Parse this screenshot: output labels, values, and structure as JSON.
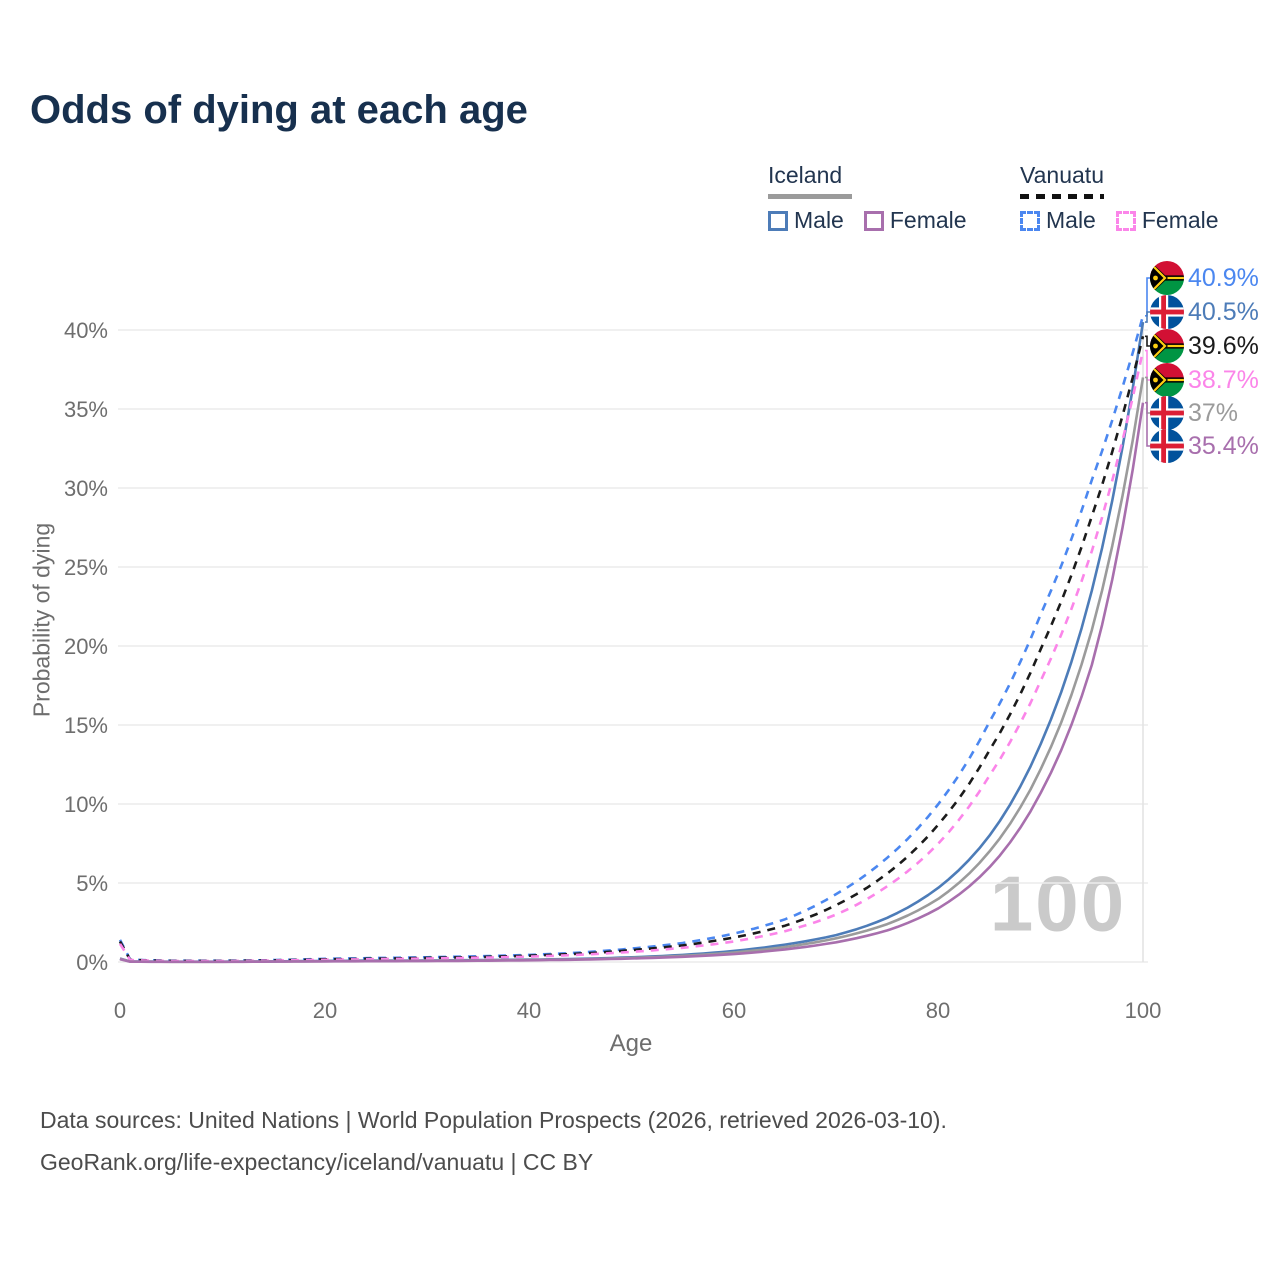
{
  "title": "Odds of dying at each age",
  "legend": {
    "groups": [
      {
        "id": "iceland",
        "title": "Iceland",
        "line_style": "solid",
        "underline_color": "#9b9b9b",
        "items": [
          {
            "label": "Male",
            "color": "#4d7cb8"
          },
          {
            "label": "Female",
            "color": "#a86fad"
          }
        ]
      },
      {
        "id": "vanuatu",
        "title": "Vanuatu",
        "line_style": "dashed",
        "underline_color": "#111111",
        "items": [
          {
            "label": "Male",
            "color": "#4b87f0"
          },
          {
            "label": "Female",
            "color": "#fb85e9"
          }
        ]
      }
    ]
  },
  "watermark": "100",
  "footer": {
    "line1": "Data sources: United Nations | World Population Prospects (2026, retrieved 2026-03-10).",
    "line2": "GeoRank.org/life-expectancy/iceland/vanuatu | CC BY"
  },
  "chart_data": {
    "type": "line",
    "title": "Odds of dying at each age",
    "xlabel": "Age",
    "ylabel": "Probability of dying",
    "xlim": [
      0,
      100
    ],
    "ylim": [
      0,
      43
    ],
    "grid": true,
    "hover_age": 100,
    "x_tick_values": [
      0,
      20,
      40,
      60,
      80,
      100
    ],
    "x_tick_labels": [
      "0",
      "20",
      "40",
      "60",
      "80",
      "100"
    ],
    "y_tick_values": [
      0,
      5,
      10,
      15,
      20,
      25,
      30,
      35,
      40
    ],
    "y_tick_labels": [
      "0%",
      "5%",
      "10%",
      "15%",
      "20%",
      "25%",
      "30%",
      "35%",
      "40%"
    ],
    "ages": [
      0,
      1,
      5,
      10,
      15,
      20,
      25,
      30,
      35,
      40,
      45,
      50,
      55,
      60,
      65,
      70,
      75,
      80,
      85,
      90,
      95,
      100
    ],
    "series": [
      {
        "name": "Vanuatu Male",
        "country": "Vanuatu",
        "sex": "Male",
        "flag": "vanuatu",
        "color": "#4b87f0",
        "dash": true,
        "end_label": "40.9%",
        "values": [
          1.4,
          0.15,
          0.08,
          0.08,
          0.12,
          0.2,
          0.25,
          0.3,
          0.36,
          0.45,
          0.6,
          0.85,
          1.2,
          1.8,
          2.7,
          4.3,
          6.6,
          10.0,
          15.2,
          22.0,
          30.5,
          40.9
        ]
      },
      {
        "name": "Iceland Male",
        "country": "Iceland",
        "sex": "Male",
        "flag": "iceland",
        "color": "#4d7cb8",
        "dash": false,
        "end_label": "40.5%",
        "values": [
          0.22,
          0.03,
          0.02,
          0.02,
          0.04,
          0.07,
          0.09,
          0.1,
          0.12,
          0.15,
          0.2,
          0.3,
          0.45,
          0.7,
          1.1,
          1.7,
          2.8,
          4.7,
          8.0,
          13.8,
          23.5,
          40.5
        ]
      },
      {
        "name": "Vanuatu Both sexes",
        "country": "Vanuatu",
        "sex": "Both",
        "flag": "vanuatu",
        "color": "#1b1b1b",
        "dash": true,
        "end_label": "39.6%",
        "values": [
          1.3,
          0.13,
          0.07,
          0.07,
          0.1,
          0.17,
          0.21,
          0.26,
          0.31,
          0.4,
          0.53,
          0.75,
          1.05,
          1.55,
          2.3,
          3.6,
          5.6,
          8.7,
          13.4,
          19.8,
          28.2,
          39.6
        ]
      },
      {
        "name": "Vanuatu Female",
        "country": "Vanuatu",
        "sex": "Female",
        "flag": "vanuatu",
        "color": "#fb85e9",
        "dash": true,
        "end_label": "38.7%",
        "values": [
          1.15,
          0.12,
          0.06,
          0.06,
          0.09,
          0.14,
          0.18,
          0.22,
          0.27,
          0.34,
          0.46,
          0.64,
          0.9,
          1.3,
          1.95,
          3.0,
          4.8,
          7.5,
          11.8,
          17.8,
          26.0,
          38.7
        ]
      },
      {
        "name": "Iceland Both sexes",
        "country": "Iceland",
        "sex": "Both",
        "flag": "iceland",
        "color": "#9b9b9b",
        "dash": false,
        "end_label": "37%",
        "values": [
          0.2,
          0.025,
          0.015,
          0.015,
          0.03,
          0.05,
          0.07,
          0.08,
          0.1,
          0.13,
          0.17,
          0.26,
          0.39,
          0.6,
          0.95,
          1.5,
          2.4,
          4.0,
          7.0,
          12.2,
          21.0,
          37.0
        ]
      },
      {
        "name": "Iceland Female",
        "country": "Iceland",
        "sex": "Female",
        "flag": "iceland",
        "color": "#a86fad",
        "dash": false,
        "end_label": "35.4%",
        "values": [
          0.18,
          0.02,
          0.01,
          0.01,
          0.025,
          0.04,
          0.05,
          0.06,
          0.08,
          0.11,
          0.15,
          0.22,
          0.33,
          0.5,
          0.8,
          1.25,
          2.0,
          3.4,
          6.0,
          10.7,
          18.8,
          35.4
        ]
      }
    ],
    "label_row_y": [
      278,
      312,
      346,
      380,
      413,
      446
    ],
    "legend_position": "top-right"
  }
}
